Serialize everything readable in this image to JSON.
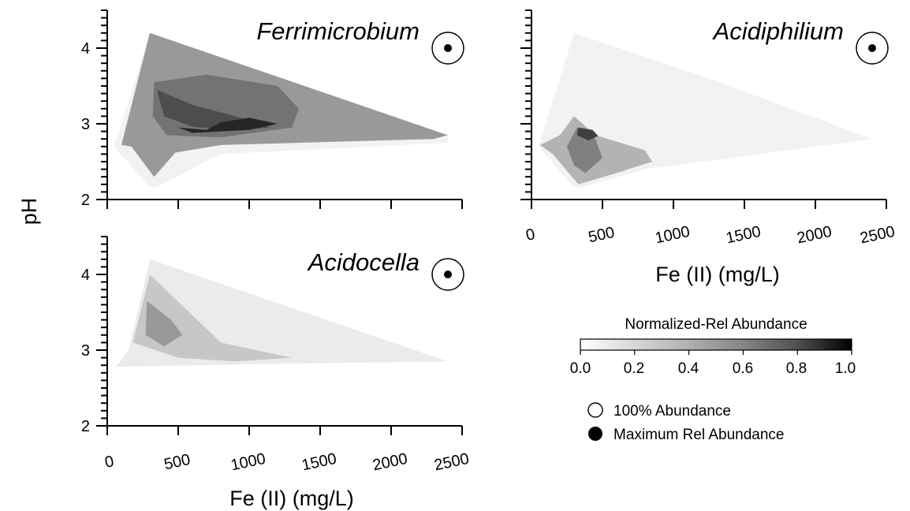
{
  "chart_data": [
    {
      "type": "heatmap",
      "title": "Ferrimicrobium",
      "xlabel": "",
      "ylabel": "pH",
      "x_ticks": [],
      "y_ticks": [
        "2",
        "3",
        "4"
      ],
      "xlim": [
        0,
        2500
      ],
      "ylim": [
        2,
        4.5
      ],
      "value_range": [
        0,
        1
      ],
      "max_marker": {
        "x": 2400,
        "y": 4.0
      },
      "contours": [
        {
          "level": 0.05,
          "points": [
            [
              300,
              4.2
            ],
            [
              2400,
              2.85
            ],
            [
              2400,
              2.75
            ],
            [
              800,
              2.6
            ],
            [
              330,
              2.15
            ],
            [
              280,
              2.2
            ],
            [
              50,
              2.7
            ]
          ]
        },
        {
          "level": 0.4,
          "points": [
            [
              300,
              4.2
            ],
            [
              2400,
              2.85
            ],
            [
              2300,
              2.8
            ],
            [
              800,
              2.72
            ],
            [
              480,
              2.62
            ],
            [
              330,
              2.3
            ],
            [
              170,
              2.7
            ],
            [
              100,
              2.72
            ]
          ]
        },
        {
          "level": 0.55,
          "points": [
            [
              330,
              3.55
            ],
            [
              700,
              3.65
            ],
            [
              1200,
              3.5
            ],
            [
              1350,
              3.2
            ],
            [
              1300,
              2.95
            ],
            [
              800,
              2.82
            ],
            [
              420,
              2.85
            ],
            [
              320,
              3.1
            ]
          ]
        },
        {
          "level": 0.7,
          "points": [
            [
              350,
              3.45
            ],
            [
              600,
              3.25
            ],
            [
              900,
              3.1
            ],
            [
              1150,
              2.95
            ],
            [
              900,
              2.92
            ],
            [
              600,
              2.96
            ],
            [
              400,
              3.1
            ]
          ]
        },
        {
          "level": 0.85,
          "points": [
            [
              500,
              2.95
            ],
            [
              700,
              2.92
            ],
            [
              800,
              3.02
            ],
            [
              1000,
              3.08
            ],
            [
              1200,
              3.0
            ],
            [
              1000,
              2.92
            ],
            [
              600,
              2.88
            ]
          ]
        }
      ]
    },
    {
      "type": "heatmap",
      "title": "Acidiphilium",
      "xlabel": "Fe (II) (mg/L)",
      "ylabel": "",
      "x_ticks": [
        "0",
        "500",
        "1000",
        "1500",
        "2000",
        "2500"
      ],
      "y_ticks": [],
      "xlim": [
        0,
        2500
      ],
      "ylim": [
        2,
        4.5
      ],
      "value_range": [
        0,
        1
      ],
      "max_marker": {
        "x": 2400,
        "y": 4.0
      },
      "contours": [
        {
          "level": 0.05,
          "points": [
            [
              300,
              4.2
            ],
            [
              1250,
              3.6
            ],
            [
              2400,
              2.8
            ],
            [
              800,
              2.4
            ],
            [
              330,
              2.15
            ],
            [
              280,
              2.2
            ],
            [
              50,
              2.7
            ]
          ]
        },
        {
          "level": 0.3,
          "points": [
            [
              300,
              3.1
            ],
            [
              450,
              2.85
            ],
            [
              800,
              2.65
            ],
            [
              850,
              2.5
            ],
            [
              600,
              2.35
            ],
            [
              330,
              2.2
            ],
            [
              150,
              2.6
            ],
            [
              60,
              2.72
            ],
            [
              200,
              2.85
            ]
          ]
        },
        {
          "level": 0.5,
          "points": [
            [
              320,
              2.95
            ],
            [
              450,
              2.8
            ],
            [
              500,
              2.55
            ],
            [
              380,
              2.35
            ],
            [
              300,
              2.45
            ],
            [
              250,
              2.7
            ]
          ]
        },
        {
          "level": 0.75,
          "points": [
            [
              330,
              2.95
            ],
            [
              430,
              2.92
            ],
            [
              470,
              2.84
            ],
            [
              400,
              2.78
            ],
            [
              320,
              2.85
            ]
          ]
        }
      ]
    },
    {
      "type": "heatmap",
      "title": "Acidocella",
      "xlabel": "Fe (II) (mg/L)",
      "ylabel": "",
      "x_ticks": [
        "0",
        "500",
        "1000",
        "1500",
        "2000",
        "2500"
      ],
      "y_ticks": [
        "2",
        "3",
        "4"
      ],
      "xlim": [
        0,
        2500
      ],
      "ylim": [
        2,
        4.5
      ],
      "value_range": [
        0,
        1
      ],
      "max_marker": {
        "x": 2400,
        "y": 4.0
      },
      "contours": [
        {
          "level": 0.08,
          "points": [
            [
              300,
              4.2
            ],
            [
              2400,
              2.85
            ],
            [
              1200,
              2.82
            ],
            [
              60,
              2.78
            ],
            [
              150,
              3.0
            ]
          ]
        },
        {
          "level": 0.22,
          "points": [
            [
              300,
              4.0
            ],
            [
              800,
              3.1
            ],
            [
              1300,
              2.9
            ],
            [
              900,
              2.85
            ],
            [
              500,
              2.9
            ],
            [
              180,
              3.1
            ]
          ]
        },
        {
          "level": 0.4,
          "points": [
            [
              280,
              3.65
            ],
            [
              450,
              3.4
            ],
            [
              530,
              3.2
            ],
            [
              400,
              3.05
            ],
            [
              270,
              3.2
            ]
          ]
        }
      ]
    }
  ],
  "legend": {
    "colorbar_title": "Normalized-Rel Abundance",
    "colorbar_ticks": [
      "0.0",
      "0.2",
      "0.4",
      "0.6",
      "0.8",
      "1.0"
    ],
    "open_marker_label": "100% Abundance",
    "filled_marker_label": "Maximum Rel Abundance"
  }
}
